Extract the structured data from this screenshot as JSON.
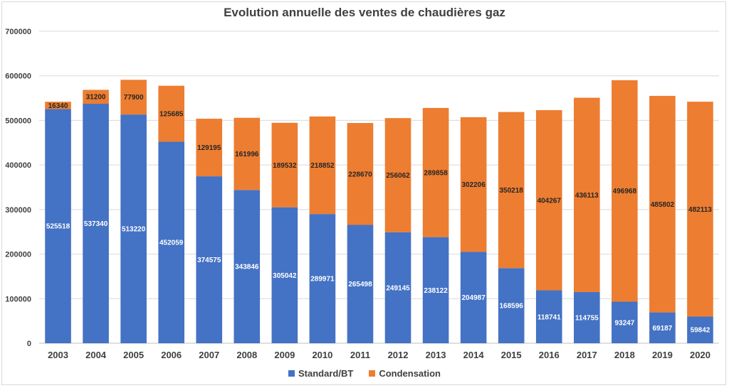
{
  "chart_data": {
    "type": "bar",
    "stacked": true,
    "title": "Evolution annuelle des ventes de chaudières gaz",
    "categories": [
      "2003",
      "2004",
      "2005",
      "2006",
      "2007",
      "2008",
      "2009",
      "2010",
      "2011",
      "2012",
      "2013",
      "2014",
      "2015",
      "2016",
      "2017",
      "2018",
      "2019",
      "2020"
    ],
    "series": [
      {
        "name": "Standard/BT",
        "color": "#4472C4",
        "label_color": "#ffffff",
        "values": [
          525518,
          537340,
          513220,
          452059,
          374575,
          343846,
          305042,
          289971,
          265498,
          249145,
          238122,
          204987,
          168596,
          118741,
          114755,
          93247,
          69187,
          59842
        ]
      },
      {
        "name": "Condensation",
        "color": "#ED7D31",
        "label_color": "#262626",
        "values": [
          16340,
          31200,
          77900,
          125685,
          129195,
          161996,
          189532,
          218852,
          228670,
          256062,
          289858,
          302206,
          350218,
          404267,
          436113,
          496968,
          485802,
          482113
        ]
      }
    ],
    "ylim": [
      0,
      700000
    ],
    "yticks": [
      0,
      100000,
      200000,
      300000,
      400000,
      500000,
      600000,
      700000
    ],
    "grid": true,
    "legend_position": "bottom"
  }
}
